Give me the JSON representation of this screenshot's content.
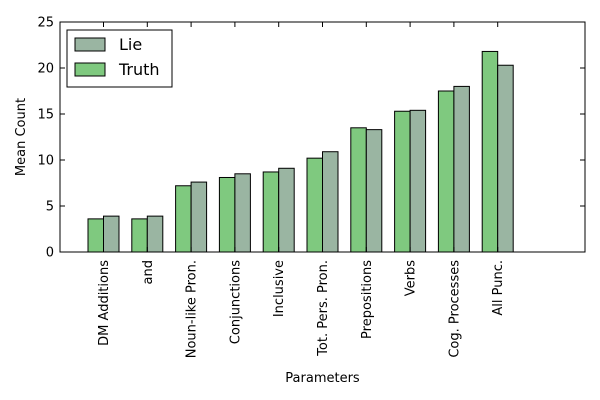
{
  "chart_data": {
    "type": "bar",
    "xlabel": "Parameters",
    "ylabel": "Mean Count",
    "ylim": [
      0,
      25
    ],
    "yticks": [
      0,
      5,
      10,
      15,
      20,
      25
    ],
    "categories": [
      "DM Additions",
      "and",
      "Noun-like Pron.",
      "Conjunctions",
      "Inclusive",
      "Tot. Pers. Pron.",
      "Prepositions",
      "Verbs",
      "Cog. Processes",
      "All Punc."
    ],
    "series": [
      {
        "name": "Truth",
        "color": "#7fc97f",
        "values": [
          3.6,
          3.6,
          7.2,
          8.1,
          8.7,
          10.2,
          13.5,
          15.3,
          17.5,
          21.8
        ]
      },
      {
        "name": "Lie",
        "color": "#9ab5a2",
        "values": [
          3.9,
          3.9,
          7.6,
          8.5,
          9.1,
          10.9,
          13.3,
          15.4,
          18.0,
          20.3
        ]
      }
    ],
    "legend": {
      "placement": "top-left",
      "entries": [
        {
          "label": "Lie",
          "color": "#9ab5a2"
        },
        {
          "label": "Truth",
          "color": "#7fc97f"
        }
      ]
    },
    "grid": false
  }
}
